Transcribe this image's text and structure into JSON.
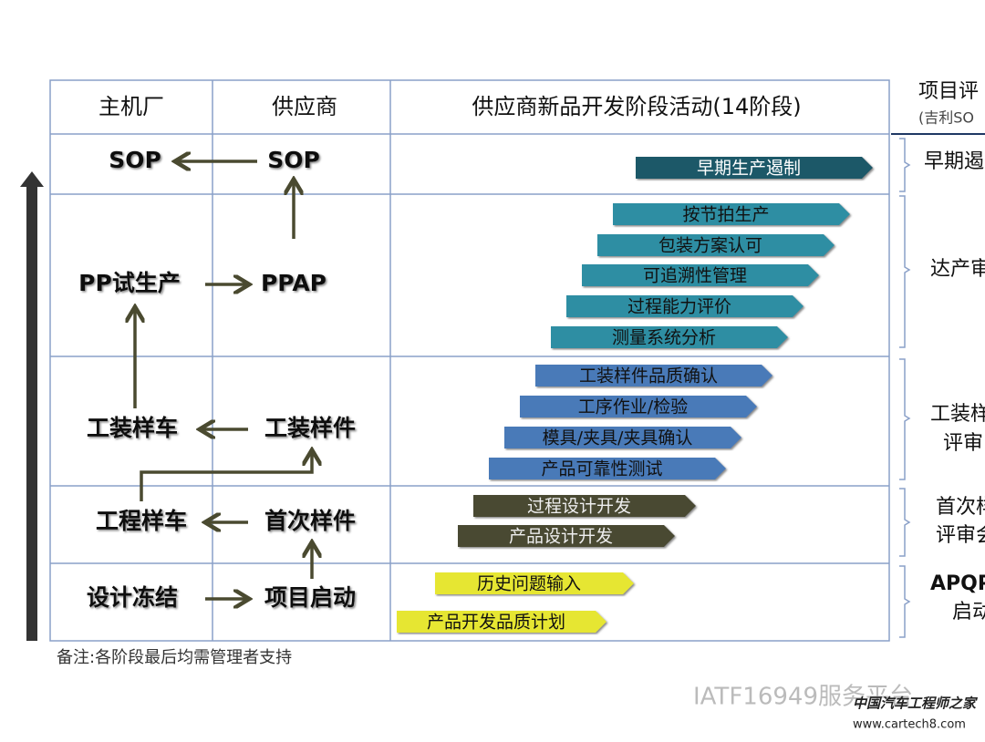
{
  "header": {
    "columns": [
      "主机厂",
      "供应商",
      "供应商新品开发阶段活动(14阶段)"
    ]
  },
  "flow": {
    "nodes": [
      {
        "label": "SOP"
      },
      {
        "label": "SOP"
      },
      {
        "label": "PP试生产"
      },
      {
        "label": "PPAP"
      },
      {
        "label": "工装样车"
      },
      {
        "label": "工装样件"
      },
      {
        "label": "工程样车"
      },
      {
        "label": "首次样件"
      },
      {
        "label": "设计冻结"
      },
      {
        "label": "项目启动"
      }
    ]
  },
  "activities": [
    {
      "label": "早期生产遏制"
    },
    {
      "label": "按节拍生产"
    },
    {
      "label": "包装方案认可"
    },
    {
      "label": "可追溯性管理"
    },
    {
      "label": "过程能力评价"
    },
    {
      "label": "测量系统分析"
    },
    {
      "label": "工装样件品质确认"
    },
    {
      "label": "工序作业/检验"
    },
    {
      "label": "模具/夹具/夹具确认"
    },
    {
      "label": "产品可靠性测试"
    },
    {
      "label": "过程设计开发"
    },
    {
      "label": "产品设计开发"
    },
    {
      "label": "历史问题输入"
    },
    {
      "label": "产品开发品质计划"
    }
  ],
  "reviews": {
    "title": "项目评",
    "subtitle": "(吉利SO",
    "items": [
      [
        "早期遏"
      ],
      [
        "达产审"
      ],
      [
        "工装样",
        "评审"
      ],
      [
        "首次样",
        "评审会"
      ],
      [
        "APQP",
        "启动"
      ]
    ]
  },
  "note": "备注:各阶段最后均需管理者支持",
  "watermark": {
    "platform": "IATF16949服务平台",
    "site_name": "中国汽车工程师之家",
    "url": "www.cartech8.com"
  }
}
